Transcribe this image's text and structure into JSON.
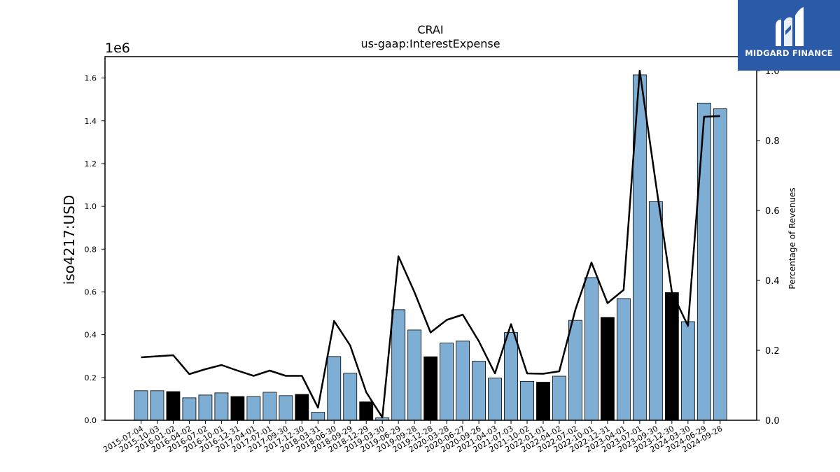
{
  "chart_data": {
    "type": "bar",
    "title": "CRAI",
    "subtitle": "us-gaap:InterestExpense",
    "ylabel": "iso4217:USD",
    "y_offset_label": "1e6",
    "y2label": "Percentage of Revenues",
    "ylim": [
      0,
      1.7
    ],
    "y2lim": [
      0,
      1.04
    ],
    "yticks": [
      "0.0",
      "0.2",
      "0.4",
      "0.6",
      "0.8",
      "1.0",
      "1.2",
      "1.4",
      "1.6"
    ],
    "y2ticks": [
      "0.0",
      "0.2",
      "0.4",
      "0.6",
      "0.8",
      "1.0"
    ],
    "categories": [
      "2015-07-04",
      "2015-10-03",
      "2016-01-02",
      "2016-04-02",
      "2016-07-02",
      "2016-10-01",
      "2016-12-31",
      "2017-04-01",
      "2017-07-01",
      "2017-09-30",
      "2017-12-30",
      "2018-03-31",
      "2018-06-30",
      "2018-09-29",
      "2018-12-29",
      "2019-03-30",
      "2019-06-29",
      "2019-09-28",
      "2019-12-28",
      "2020-03-28",
      "2020-06-27",
      "2020-09-26",
      "2021-04-03",
      "2021-07-03",
      "2021-10-02",
      "2022-01-01",
      "2022-04-02",
      "2022-07-02",
      "2022-10-01",
      "2022-12-31",
      "2023-04-01",
      "2023-07-01",
      "2023-09-30",
      "2023-12-30",
      "2024-03-30",
      "2024-06-29",
      "2024-09-28"
    ],
    "values": [
      0.138,
      0.138,
      0.134,
      0.105,
      0.118,
      0.128,
      0.111,
      0.111,
      0.131,
      0.115,
      0.121,
      0.037,
      0.298,
      0.22,
      0.086,
      0.011,
      0.517,
      0.422,
      0.297,
      0.361,
      0.37,
      0.276,
      0.197,
      0.41,
      0.182,
      0.178,
      0.206,
      0.467,
      0.667,
      0.481,
      0.569,
      1.615,
      1.022,
      0.597,
      0.461,
      1.483,
      1.456
    ],
    "bar_colors": [
      "#7eaed3",
      "#7eaed3",
      "#000000",
      "#7eaed3",
      "#7eaed3",
      "#7eaed3",
      "#000000",
      "#7eaed3",
      "#7eaed3",
      "#7eaed3",
      "#000000",
      "#7eaed3",
      "#7eaed3",
      "#7eaed3",
      "#000000",
      "#7eaed3",
      "#7eaed3",
      "#7eaed3",
      "#000000",
      "#7eaed3",
      "#7eaed3",
      "#7eaed3",
      "#7eaed3",
      "#7eaed3",
      "#7eaed3",
      "#000000",
      "#7eaed3",
      "#7eaed3",
      "#7eaed3",
      "#000000",
      "#7eaed3",
      "#7eaed3",
      "#7eaed3",
      "#000000",
      "#7eaed3",
      "#7eaed3",
      "#7eaed3"
    ],
    "line_values": [
      0.18,
      0.183,
      0.186,
      0.132,
      0.146,
      0.158,
      0.142,
      0.127,
      0.142,
      0.127,
      0.127,
      0.036,
      0.284,
      0.214,
      0.08,
      0.008,
      0.469,
      0.366,
      0.251,
      0.287,
      0.302,
      0.226,
      0.134,
      0.275,
      0.134,
      0.133,
      0.14,
      0.316,
      0.451,
      0.335,
      0.373,
      1.0,
      0.678,
      0.366,
      0.27,
      0.868,
      0.87
    ],
    "line_color": "#000000",
    "grid": false
  },
  "logo": {
    "text": "MIDGARD FINANCE",
    "bg_color": "#2b5aa8",
    "icon": "midgard-logo-icon"
  }
}
